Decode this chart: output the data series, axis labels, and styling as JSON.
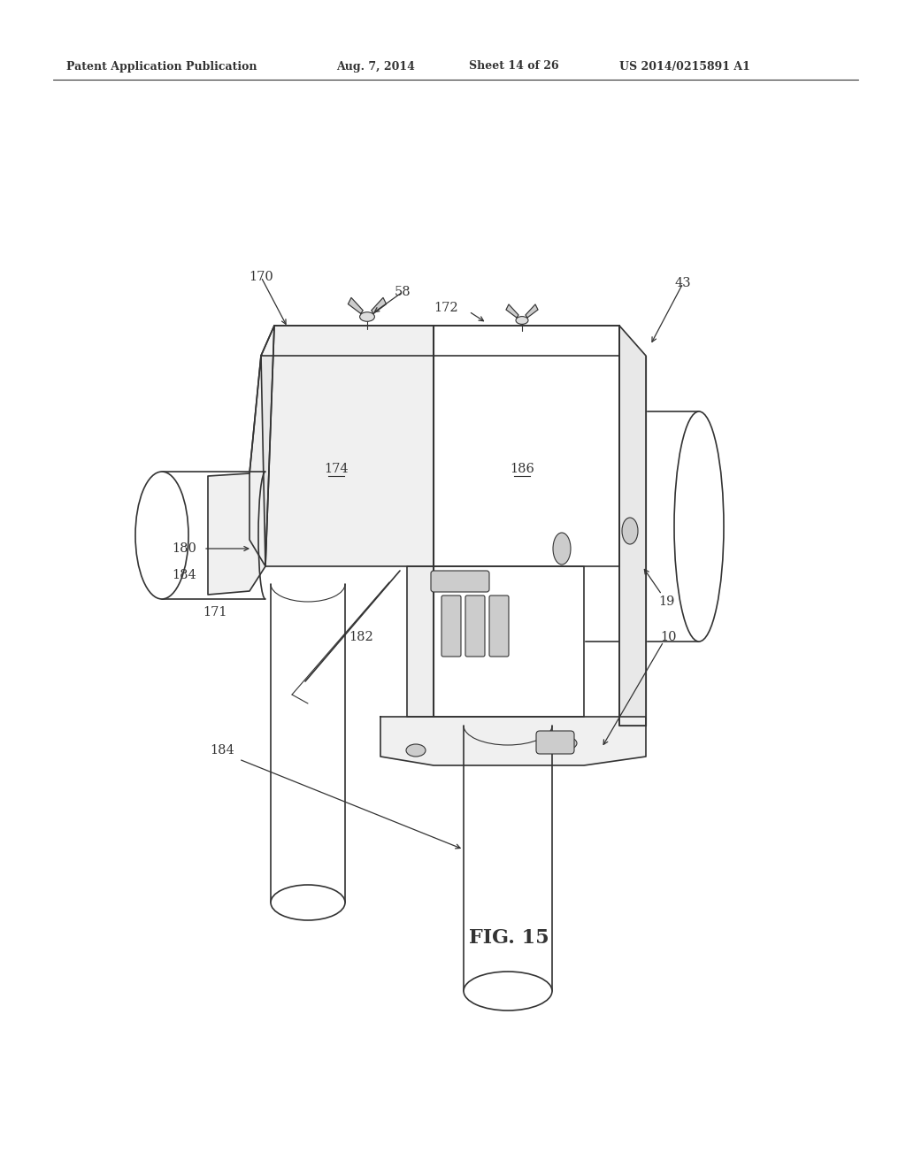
{
  "background_color": "#ffffff",
  "line_color": "#333333",
  "header_text": "Patent Application Publication",
  "header_date": "Aug. 7, 2014",
  "header_sheet": "Sheet 14 of 26",
  "header_patent": "US 2014/0215891 A1",
  "fig_label": "FIG. 15",
  "lw_main": 1.2,
  "lw_thin": 0.8,
  "lw_detail": 0.7
}
